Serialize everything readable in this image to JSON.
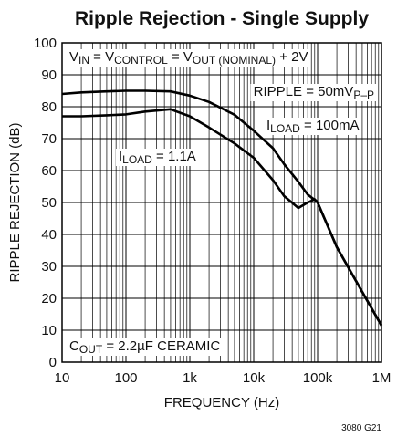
{
  "chart_data": {
    "type": "line",
    "title": "Ripple Rejection - Single Supply",
    "xlabel": "FREQUENCY (Hz)",
    "ylabel": "RIPPLE REJECTION (dB)",
    "footnote": "3080 G21",
    "xscale": "log",
    "grid": true,
    "xlim": [
      10,
      1000000
    ],
    "ylim": [
      0,
      100
    ],
    "xticks": [
      10,
      100,
      {
        "value": 1000,
        "label": "1k"
      },
      {
        "value": 10000,
        "label": "10k"
      },
      {
        "value": 100000,
        "label": "100k"
      },
      {
        "value": 1000000,
        "label": "1M"
      }
    ],
    "xminorticks": [
      20,
      30,
      40,
      50,
      60,
      70,
      80,
      90,
      200,
      300,
      400,
      500,
      600,
      700,
      800,
      900,
      2000,
      3000,
      4000,
      5000,
      6000,
      7000,
      8000,
      9000,
      20000,
      30000,
      40000,
      50000,
      60000,
      70000,
      80000,
      90000,
      200000,
      300000,
      400000,
      500000,
      600000,
      700000,
      800000,
      900000
    ],
    "yticks": [
      0,
      10,
      20,
      30,
      40,
      50,
      60,
      70,
      80,
      90,
      100
    ],
    "x": [
      10,
      20,
      50,
      100,
      200,
      500,
      1000,
      2000,
      5000,
      10000,
      20000,
      30000,
      50000,
      70000,
      90000,
      100000,
      200000,
      500000,
      1000000
    ],
    "series": [
      {
        "color": "#000000",
        "values": [
          84,
          84.5,
          84.8,
          85,
          85,
          84.8,
          83.5,
          81.5,
          77.5,
          72.5,
          67,
          62,
          56.5,
          52.5,
          50.8,
          50,
          36,
          22,
          11.5
        ]
      },
      {
        "color": "#000000",
        "values": [
          77,
          77,
          77.3,
          77.6,
          78.5,
          79.2,
          77,
          73.5,
          68.5,
          64,
          57,
          52,
          48.3,
          50,
          51,
          50,
          36,
          22,
          11.5
        ]
      }
    ],
    "annotations": [
      {
        "runs": [
          {
            "text": "V"
          },
          {
            "text": "IN",
            "sub": true
          },
          {
            "text": " = V"
          },
          {
            "text": "CONTROL",
            "sub": true
          },
          {
            "text": " = V"
          },
          {
            "text": "OUT (NOMINAL)",
            "sub": true
          },
          {
            "text": " + 2V"
          }
        ]
      },
      {
        "runs": [
          {
            "text": "RIPPLE = 50mV"
          },
          {
            "text": "P–P",
            "sub": true
          }
        ]
      },
      {
        "runs": [
          {
            "text": "I"
          },
          {
            "text": "LOAD",
            "sub": true
          },
          {
            "text": " = 100mA"
          }
        ]
      },
      {
        "runs": [
          {
            "text": "I"
          },
          {
            "text": "LOAD",
            "sub": true
          },
          {
            "text": " = 1.1A"
          }
        ]
      },
      {
        "runs": [
          {
            "text": "C"
          },
          {
            "text": "OUT",
            "sub": true
          },
          {
            "text": " = 2.2µF CERAMIC"
          }
        ]
      }
    ]
  }
}
